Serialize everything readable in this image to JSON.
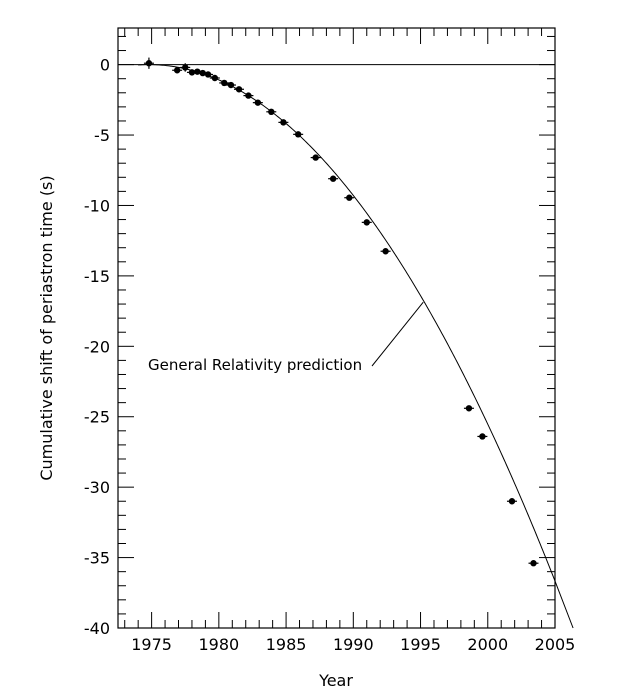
{
  "chart_data": {
    "type": "scatter",
    "title": "",
    "xlabel": "Year",
    "ylabel": "Cumulative shift of periastron time (s)",
    "xlim": [
      1972.5,
      2005
    ],
    "ylim": [
      -40,
      2.6
    ],
    "xticks": [
      1975,
      1980,
      1985,
      1990,
      1995,
      2000,
      2005
    ],
    "xtick_labels": [
      "1975",
      "1980",
      "1985",
      "1990",
      "1995",
      "2000",
      "2005"
    ],
    "yticks": [
      0,
      -5,
      -10,
      -15,
      -20,
      -25,
      -30,
      -35,
      -40
    ],
    "ytick_labels": [
      "0",
      "-5",
      "-10",
      "-15",
      "-20",
      "-25",
      "-30",
      "-35",
      "-40"
    ],
    "zero_line": true,
    "annotation": "General Relativity prediction",
    "prediction_curve": {
      "reference_year": 1974.8,
      "coefficient_s_per_year2": -0.0402,
      "x_range": [
        1974.0,
        2005
      ]
    },
    "series": [
      {
        "marker": "filled-circle",
        "x": [
          1974.8,
          1976.9,
          1977.5,
          1978.0,
          1978.4,
          1978.8,
          1979.2,
          1979.7,
          1980.4,
          1980.9,
          1981.5,
          1982.2,
          1982.9,
          1983.9,
          1984.8,
          1985.9,
          1987.2,
          1988.5,
          1989.7,
          1991.0,
          1992.4,
          1998.6,
          1999.6,
          2001.8,
          2003.4
        ],
        "y": [
          0.1,
          -0.4,
          -0.2,
          -0.55,
          -0.5,
          -0.6,
          -0.7,
          -0.95,
          -1.3,
          -1.45,
          -1.75,
          -2.2,
          -2.7,
          -3.35,
          -4.1,
          -4.95,
          -6.6,
          -8.1,
          -9.45,
          -11.2,
          -13.25,
          -24.4,
          -26.4,
          -31.0,
          -35.4
        ],
        "yerr": [
          0.4,
          0.15,
          0.3,
          0.15,
          0.1,
          0.1,
          0.1,
          0.1,
          0.1,
          0.1,
          0.1,
          0.1,
          0.1,
          0.1,
          0.1,
          0.1,
          0.1,
          0.1,
          0.1,
          0.1,
          0.1,
          0.1,
          0.1,
          0.1,
          0.1
        ]
      }
    ]
  },
  "colors": {
    "ink": "#000000",
    "background": "#ffffff"
  }
}
